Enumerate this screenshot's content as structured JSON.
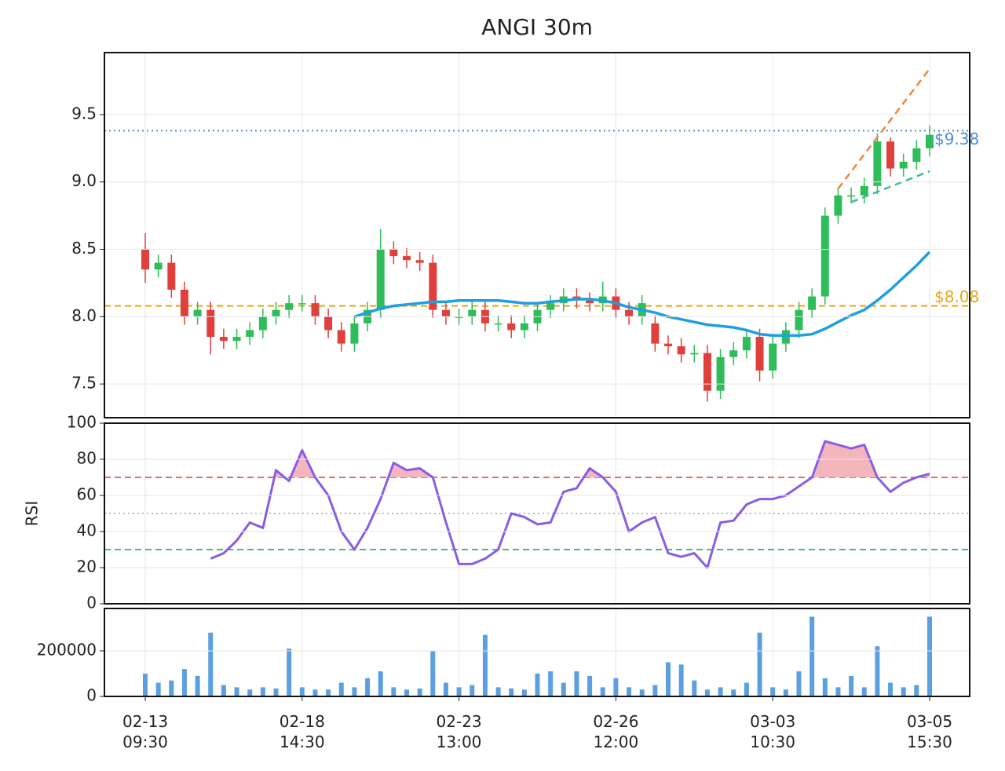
{
  "chart_data": [
    {
      "type": "candlestick",
      "title": "ANGI 30m",
      "categories": [
        "02-13\n09:30",
        null,
        null,
        null,
        null,
        null,
        null,
        null,
        null,
        null,
        null,
        null,
        "02-18\n14:30",
        null,
        null,
        null,
        null,
        null,
        null,
        null,
        null,
        null,
        null,
        null,
        "02-23\n13:00",
        null,
        null,
        null,
        null,
        null,
        null,
        null,
        null,
        null,
        null,
        null,
        "02-26\n12:00",
        null,
        null,
        null,
        null,
        null,
        null,
        null,
        null,
        null,
        null,
        null,
        "03-03\n10:30",
        null,
        null,
        null,
        null,
        null,
        null,
        null,
        null,
        null,
        null,
        null,
        "03-05\n15:30"
      ],
      "open": [
        8.5,
        8.35,
        8.4,
        8.2,
        8.0,
        8.05,
        7.85,
        7.82,
        7.85,
        7.9,
        8.0,
        8.05,
        8.1,
        8.1,
        8.0,
        7.9,
        7.8,
        7.95,
        8.05,
        8.5,
        8.45,
        8.42,
        8.4,
        8.05,
        8.0,
        8.0,
        8.05,
        7.95,
        7.95,
        7.9,
        7.95,
        8.05,
        8.1,
        8.15,
        8.12,
        8.1,
        8.15,
        8.05,
        8.0,
        7.95,
        7.8,
        7.78,
        7.72,
        7.73,
        7.45,
        7.7,
        7.75,
        7.85,
        7.6,
        7.8,
        7.9,
        8.05,
        8.15,
        8.75,
        8.9,
        8.9,
        8.97,
        9.3,
        9.1,
        9.15,
        9.25
      ],
      "high": [
        8.62,
        8.46,
        8.46,
        8.26,
        8.11,
        8.11,
        7.91,
        7.91,
        7.96,
        8.06,
        8.11,
        8.16,
        8.16,
        8.16,
        8.06,
        7.96,
        8.01,
        8.11,
        8.65,
        8.56,
        8.51,
        8.48,
        8.46,
        8.11,
        8.06,
        8.11,
        8.11,
        8.01,
        8.01,
        8.01,
        8.11,
        8.16,
        8.21,
        8.21,
        8.18,
        8.26,
        8.21,
        8.11,
        8.16,
        8.01,
        7.86,
        7.84,
        7.79,
        7.79,
        7.76,
        7.81,
        7.91,
        7.91,
        7.86,
        7.96,
        8.11,
        8.21,
        8.81,
        8.96,
        8.96,
        9.03,
        9.36,
        9.33,
        9.21,
        9.31,
        9.42
      ],
      "low": [
        8.25,
        8.29,
        8.14,
        7.94,
        7.94,
        7.72,
        7.76,
        7.76,
        7.79,
        7.84,
        7.94,
        7.99,
        8.04,
        7.94,
        7.84,
        7.74,
        7.74,
        7.89,
        7.99,
        8.39,
        8.36,
        8.34,
        7.99,
        7.94,
        7.94,
        7.94,
        7.89,
        7.89,
        7.84,
        7.84,
        7.89,
        7.99,
        8.04,
        8.06,
        8.04,
        8.04,
        7.99,
        7.94,
        7.94,
        7.74,
        7.72,
        7.66,
        7.66,
        7.37,
        7.39,
        7.64,
        7.69,
        7.52,
        7.54,
        7.74,
        7.84,
        7.99,
        8.09,
        8.69,
        8.84,
        8.84,
        8.91,
        9.04,
        9.04,
        9.09,
        9.19
      ],
      "close": [
        8.35,
        8.4,
        8.2,
        8.0,
        8.05,
        7.85,
        7.82,
        7.85,
        7.9,
        8.0,
        8.05,
        8.1,
        8.1,
        8.0,
        7.9,
        7.8,
        7.95,
        8.05,
        8.5,
        8.45,
        8.42,
        8.4,
        8.05,
        8.0,
        8.0,
        8.05,
        7.95,
        7.95,
        7.9,
        7.95,
        8.05,
        8.1,
        8.15,
        8.12,
        8.1,
        8.15,
        8.05,
        8.0,
        8.1,
        7.8,
        7.78,
        7.72,
        7.73,
        7.45,
        7.7,
        7.75,
        7.85,
        7.6,
        7.8,
        7.9,
        8.05,
        8.15,
        8.75,
        8.9,
        8.9,
        8.97,
        9.3,
        9.1,
        9.15,
        9.25,
        9.35
      ],
      "up_color": "#2ebd59",
      "down_color": "#e0403c",
      "ylim": [
        7.25,
        9.96
      ],
      "yticks": [
        7.5,
        {
          "value": 8,
          "label": "8.0"
        },
        8.5,
        {
          "value": 9,
          "label": "9.0"
        },
        9.5
      ],
      "grid": true,
      "overlays": [
        {
          "color": "#1e9fe0",
          "values": [
            null,
            null,
            null,
            null,
            null,
            null,
            null,
            null,
            null,
            null,
            null,
            null,
            null,
            null,
            null,
            null,
            8.0,
            8.03,
            8.06,
            8.08,
            8.09,
            8.1,
            8.11,
            8.11,
            8.12,
            8.12,
            8.12,
            8.12,
            8.11,
            8.1,
            8.1,
            8.11,
            8.12,
            8.13,
            8.13,
            8.12,
            8.1,
            8.07,
            8.05,
            8.03,
            8.0,
            7.98,
            7.96,
            7.94,
            7.93,
            7.92,
            7.9,
            7.87,
            7.86,
            7.86,
            7.86,
            7.87,
            7.91,
            7.96,
            8.01,
            8.05,
            8.12,
            8.2,
            8.29,
            8.38,
            8.48
          ]
        }
      ],
      "hlines": [
        {
          "value": 9.38,
          "label": "$9.38",
          "color": "#4a8fd9",
          "style": "dotted"
        },
        {
          "value": 8.08,
          "label": "$8.08",
          "color": "#e6a817",
          "style": "dashed"
        }
      ],
      "trendlines": [
        {
          "x": [
            53,
            60
          ],
          "y": [
            8.95,
            9.84
          ],
          "color": "#f0843c"
        },
        {
          "x": [
            54,
            60
          ],
          "y": [
            8.85,
            9.08
          ],
          "color": "#3cbf9a"
        }
      ]
    },
    {
      "type": "line",
      "ylabel": "RSI",
      "color": "#8a5ce6",
      "values": [
        null,
        null,
        null,
        null,
        null,
        25,
        28,
        35,
        45,
        42,
        74,
        68,
        85,
        70,
        60,
        40,
        30,
        42,
        58,
        78,
        74,
        75,
        70,
        45,
        22,
        22,
        25,
        30,
        50,
        48,
        44,
        45,
        62,
        64,
        75,
        70,
        62,
        40,
        45,
        48,
        28,
        26,
        28,
        20,
        45,
        46,
        55,
        58,
        58,
        60,
        65,
        70,
        90,
        88,
        86,
        88,
        70,
        62,
        67,
        70,
        72
      ],
      "ylim": [
        0,
        100
      ],
      "yticks": [
        0,
        20,
        40,
        60,
        80,
        100
      ],
      "grid": true,
      "hlines": [
        {
          "value": 70,
          "color": "#e86a6a",
          "style": "dashed"
        },
        {
          "value": 30,
          "color": "#3cc07a",
          "style": "dashed"
        },
        {
          "value": 50,
          "color": "#bbbbbb",
          "style": "dotted"
        }
      ],
      "fill_above": 70,
      "fill_color": "#f4b6bd"
    },
    {
      "type": "bar",
      "color": "#5b9fe0",
      "values": [
        100000,
        60000,
        70000,
        120000,
        90000,
        280000,
        50000,
        40000,
        30000,
        40000,
        35000,
        210000,
        40000,
        30000,
        30000,
        60000,
        40000,
        80000,
        110000,
        40000,
        30000,
        35000,
        200000,
        60000,
        40000,
        50000,
        270000,
        40000,
        35000,
        30000,
        100000,
        110000,
        60000,
        110000,
        90000,
        40000,
        80000,
        40000,
        30000,
        50000,
        150000,
        140000,
        70000,
        30000,
        40000,
        30000,
        60000,
        280000,
        40000,
        30000,
        110000,
        350000,
        80000,
        40000,
        90000,
        40000,
        220000,
        60000,
        40000,
        50000,
        350000
      ],
      "ylim": [
        0,
        386000
      ],
      "yticks": [
        0,
        200000
      ],
      "grid": true
    }
  ]
}
